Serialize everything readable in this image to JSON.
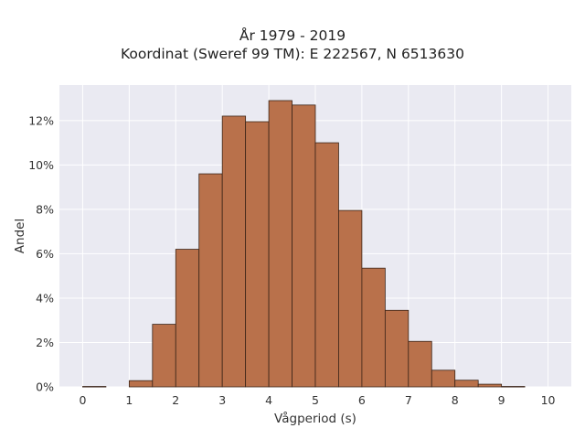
{
  "chart_data": {
    "type": "bar",
    "title_lines": [
      "År 1979 - 2019",
      "Koordinat (Sweref 99 TM): E 222567, N 6513630"
    ],
    "xlabel": "Vågperiod (s)",
    "ylabel": "Andel",
    "xlim": [
      -0.5,
      10.5
    ],
    "ylim": [
      0,
      13.6
    ],
    "x_ticks": [
      0,
      1,
      2,
      3,
      4,
      5,
      6,
      7,
      8,
      9,
      10
    ],
    "y_ticks": [
      0,
      2,
      4,
      6,
      8,
      10,
      12
    ],
    "y_tick_labels": [
      "0%",
      "2%",
      "4%",
      "6%",
      "8%",
      "10%",
      "12%"
    ],
    "bin_width": 0.5,
    "bins_start": [
      0,
      1,
      1.5,
      2,
      2.5,
      3,
      3.5,
      4,
      4.5,
      5,
      5.5,
      6,
      6.5,
      7,
      7.5,
      8,
      8.5,
      9
    ],
    "values": [
      0.02,
      0.28,
      2.82,
      6.2,
      9.6,
      12.2,
      11.95,
      12.9,
      12.7,
      11.0,
      7.95,
      5.35,
      3.45,
      2.05,
      0.75,
      0.3,
      0.12,
      0.02
    ],
    "bar_color": "#b9714b",
    "bar_edge_color": "#3a2418",
    "plot_bg": "#eaeaf2",
    "grid": true
  }
}
